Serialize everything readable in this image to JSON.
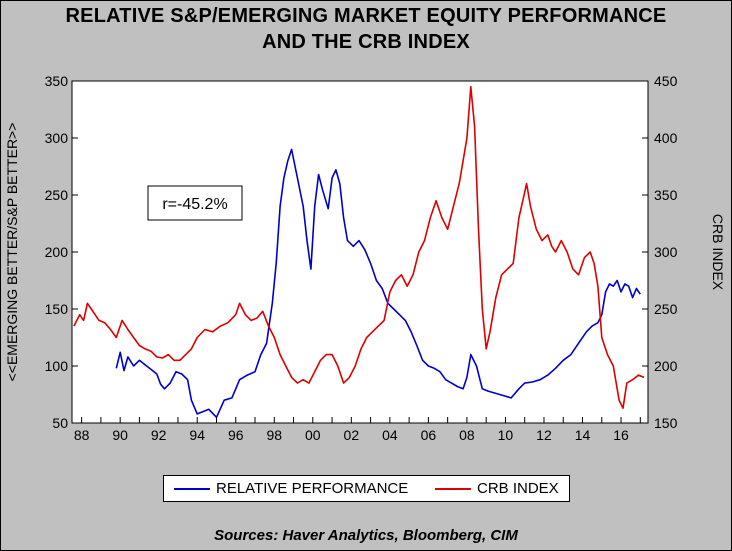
{
  "chart_data": {
    "type": "line",
    "title_line1": "RELATIVE S&P/EMERGING MARKET EQUITY PERFORMANCE",
    "title_line2": "AND THE CRB INDEX",
    "ylabel_left": "<<EMERGING BETTER/S&P BETTER>>",
    "ylabel_right": "CRB INDEX",
    "ylim_left": [
      50,
      350
    ],
    "ylim_right": [
      150,
      450
    ],
    "yticks_left": [
      50,
      100,
      150,
      200,
      250,
      300,
      350
    ],
    "yticks_right": [
      150,
      200,
      250,
      300,
      350,
      400,
      450
    ],
    "xlim": [
      1987.5,
      2017.4
    ],
    "xtick_labels": [
      "88",
      "90",
      "92",
      "94",
      "96",
      "98",
      "00",
      "02",
      "04",
      "06",
      "08",
      "10",
      "12",
      "14",
      "16"
    ],
    "annotation": "r=-45.2%",
    "source": "Sources:  Haver Analytics, Bloomberg, CIM",
    "grid": false,
    "legend_position": "bottom",
    "series": [
      {
        "name": "RELATIVE PERFORMANCE",
        "axis": "left",
        "color": "#0000cc",
        "x": [
          1989.8,
          1990.0,
          1990.2,
          1990.4,
          1990.7,
          1991.0,
          1991.3,
          1991.6,
          1991.9,
          1992.1,
          1992.3,
          1992.6,
          1992.9,
          1993.2,
          1993.5,
          1993.7,
          1994.0,
          1994.3,
          1994.6,
          1995.0,
          1995.4,
          1995.8,
          1996.2,
          1996.6,
          1997.0,
          1997.3,
          1997.6,
          1997.9,
          1998.1,
          1998.3,
          1998.5,
          1998.7,
          1998.9,
          1999.2,
          1999.5,
          1999.7,
          1999.9,
          2000.1,
          2000.3,
          2000.5,
          2000.8,
          2001.0,
          2001.2,
          2001.4,
          2001.6,
          2001.8,
          2002.1,
          2002.4,
          2002.7,
          2003.0,
          2003.3,
          2003.6,
          2003.9,
          2004.2,
          2004.5,
          2004.8,
          2005.1,
          2005.4,
          2005.7,
          2006.0,
          2006.3,
          2006.6,
          2006.9,
          2007.2,
          2007.5,
          2007.8,
          2008.0,
          2008.2,
          2008.5,
          2008.8,
          2009.1,
          2009.5,
          2009.9,
          2010.3,
          2010.7,
          2011.0,
          2011.4,
          2011.8,
          2012.2,
          2012.6,
          2013.0,
          2013.4,
          2013.8,
          2014.2,
          2014.5,
          2014.8,
          2015.0,
          2015.2,
          2015.4,
          2015.6,
          2015.8,
          2016.0,
          2016.2,
          2016.4,
          2016.6,
          2016.8,
          2017.0
        ],
        "y": [
          98,
          112,
          96,
          108,
          100,
          105,
          101,
          97,
          93,
          84,
          80,
          85,
          95,
          93,
          88,
          70,
          58,
          60,
          62,
          55,
          70,
          72,
          88,
          92,
          95,
          110,
          120,
          155,
          190,
          240,
          265,
          280,
          290,
          265,
          240,
          210,
          185,
          240,
          268,
          255,
          238,
          265,
          272,
          260,
          230,
          210,
          205,
          210,
          202,
          190,
          175,
          168,
          155,
          150,
          145,
          140,
          130,
          118,
          105,
          100,
          98,
          95,
          88,
          85,
          82,
          80,
          90,
          110,
          100,
          80,
          78,
          76,
          74,
          72,
          80,
          85,
          86,
          88,
          92,
          98,
          105,
          110,
          120,
          130,
          135,
          138,
          145,
          165,
          172,
          170,
          175,
          165,
          172,
          170,
          160,
          168,
          163
        ]
      },
      {
        "name": "CRB INDEX",
        "axis": "right",
        "color": "#dd0000",
        "x": [
          1987.6,
          1987.9,
          1988.1,
          1988.3,
          1988.5,
          1988.7,
          1988.9,
          1989.2,
          1989.5,
          1989.8,
          1990.1,
          1990.4,
          1990.7,
          1991.0,
          1991.3,
          1991.6,
          1991.9,
          1992.2,
          1992.5,
          1992.8,
          1993.1,
          1993.4,
          1993.7,
          1994.0,
          1994.4,
          1994.8,
          1995.2,
          1995.6,
          1996.0,
          1996.2,
          1996.5,
          1996.8,
          1997.1,
          1997.4,
          1997.7,
          1998.0,
          1998.3,
          1998.6,
          1998.9,
          1999.2,
          1999.5,
          1999.8,
          2000.1,
          2000.4,
          2000.7,
          2001.0,
          2001.3,
          2001.6,
          2001.9,
          2002.2,
          2002.5,
          2002.8,
          2003.1,
          2003.4,
          2003.7,
          2004.0,
          2004.3,
          2004.6,
          2004.9,
          2005.2,
          2005.5,
          2005.8,
          2006.1,
          2006.4,
          2006.7,
          2007.0,
          2007.3,
          2007.6,
          2007.8,
          2008.0,
          2008.2,
          2008.4,
          2008.6,
          2008.8,
          2009.0,
          2009.2,
          2009.5,
          2009.8,
          2010.1,
          2010.4,
          2010.7,
          2010.9,
          2011.1,
          2011.3,
          2011.6,
          2011.9,
          2012.2,
          2012.4,
          2012.6,
          2012.9,
          2013.2,
          2013.5,
          2013.8,
          2014.1,
          2014.4,
          2014.6,
          2014.8,
          2015.0,
          2015.3,
          2015.6,
          2015.9,
          2016.1,
          2016.3,
          2016.6,
          2016.9,
          2017.2
        ],
        "y": [
          235,
          245,
          240,
          255,
          250,
          245,
          240,
          238,
          232,
          225,
          240,
          232,
          225,
          218,
          215,
          213,
          208,
          207,
          210,
          205,
          205,
          210,
          215,
          225,
          232,
          230,
          235,
          238,
          245,
          255,
          245,
          240,
          242,
          248,
          235,
          225,
          210,
          200,
          190,
          185,
          188,
          185,
          195,
          205,
          210,
          210,
          200,
          185,
          190,
          200,
          215,
          225,
          230,
          235,
          240,
          265,
          275,
          280,
          270,
          280,
          300,
          310,
          330,
          345,
          330,
          320,
          340,
          360,
          380,
          400,
          445,
          410,
          320,
          250,
          215,
          230,
          260,
          280,
          285,
          290,
          330,
          345,
          360,
          340,
          320,
          310,
          315,
          305,
          300,
          310,
          300,
          285,
          280,
          295,
          300,
          290,
          270,
          225,
          210,
          200,
          170,
          163,
          185,
          188,
          192,
          190
        ]
      }
    ]
  }
}
